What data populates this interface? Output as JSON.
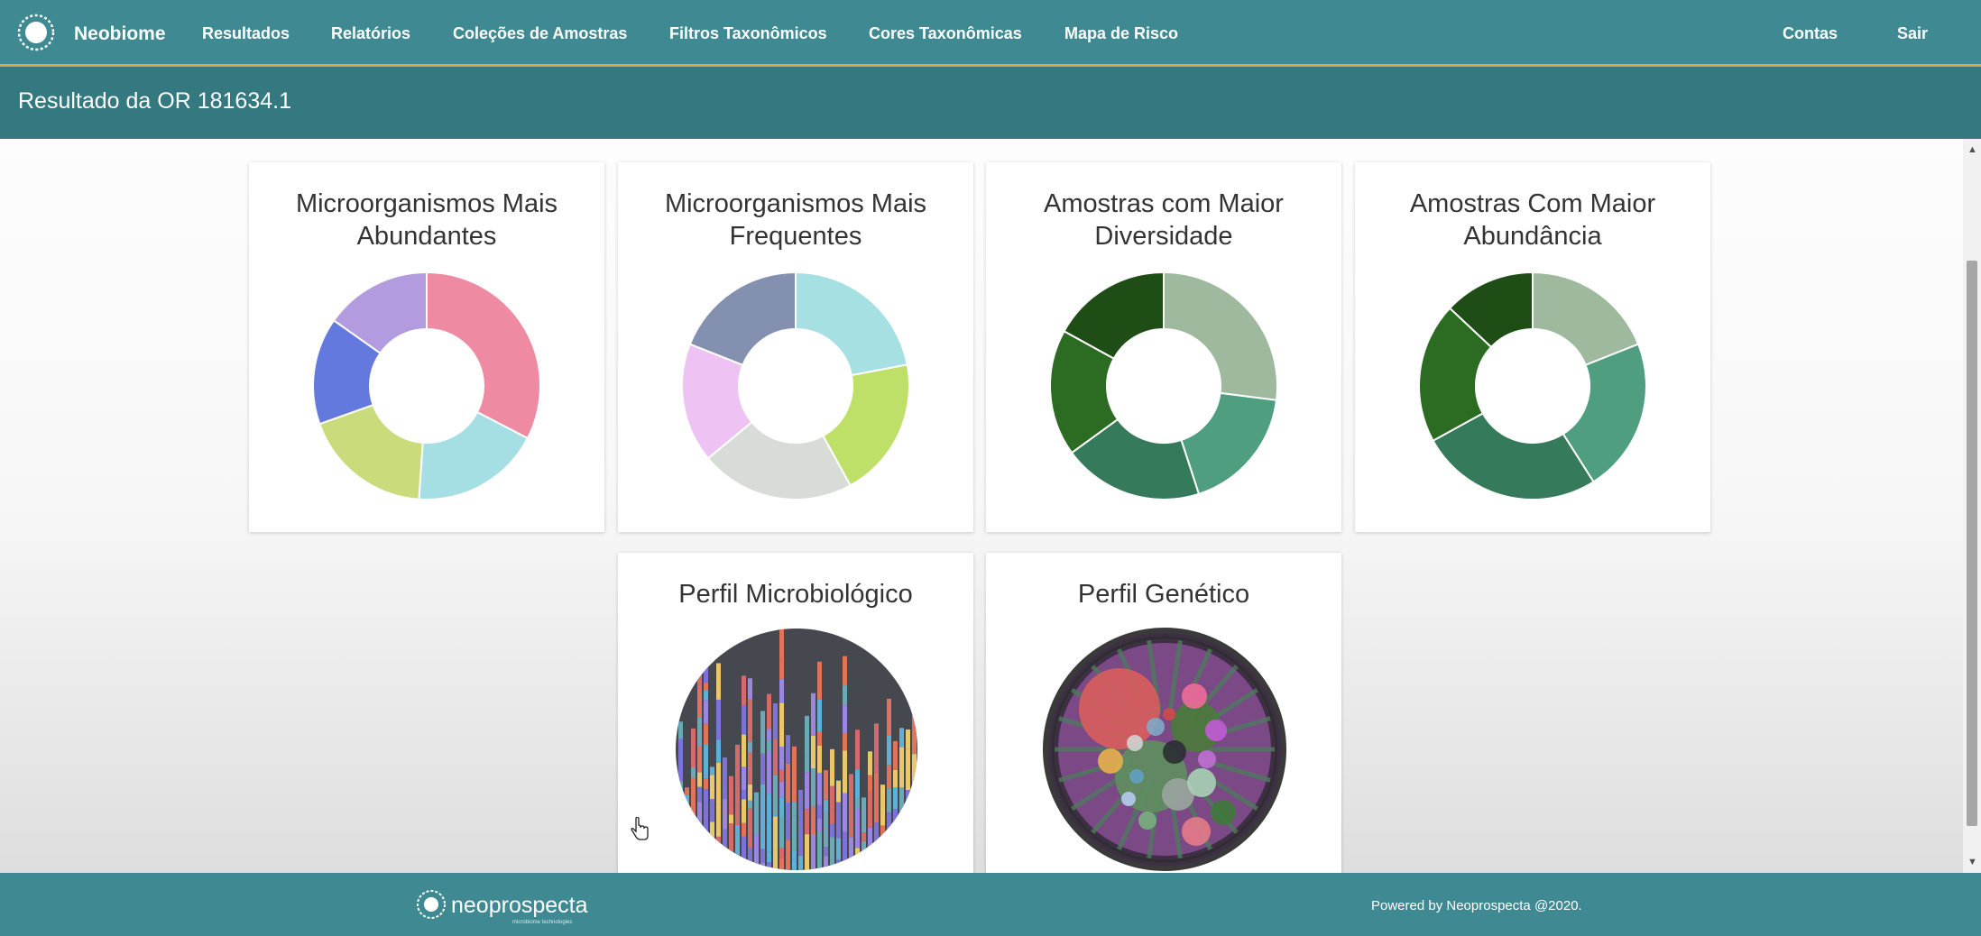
{
  "nav": {
    "brand": "Neobiome",
    "items": [
      "Resultados",
      "Relatórios",
      "Coleções de Amostras",
      "Filtros Taxonômicos",
      "Cores Taxonômicas",
      "Mapa de Risco"
    ],
    "right_items": [
      "Contas",
      "Sair"
    ]
  },
  "page": {
    "title": "Resultado da OR 181634.1"
  },
  "cards": [
    {
      "title": "Microorganismos Mais Abundantes",
      "line1": "Microorganismos Mais",
      "line2": "Abundantes"
    },
    {
      "title": "Microorganismos Mais Frequentes",
      "line1": "Microorganismos Mais",
      "line2": "Frequentes"
    },
    {
      "title": "Amostras com Maior Diversidade",
      "line1": "Amostras com Maior",
      "line2": "Diversidade"
    },
    {
      "title": "Amostras Com Maior Abundância",
      "line1": "Amostras Com Maior",
      "line2": "Abundância"
    },
    {
      "title": "Perfil Microbiológico",
      "line1": "Perfil Microbiológico"
    },
    {
      "title": "Perfil Genético",
      "line1": "Perfil Genético"
    }
  ],
  "chart_data": [
    {
      "type": "pie",
      "values": [
        30,
        17,
        17,
        14,
        14
      ],
      "colors": [
        "#ef8aa3",
        "#a5dfe3",
        "#c9db7a",
        "#6479dd",
        "#b39be0"
      ]
    },
    {
      "type": "pie",
      "values": [
        22,
        20,
        22,
        17,
        19
      ],
      "colors": [
        "#a7e0e3",
        "#bedf68",
        "#d7dcd6",
        "#eec3f4",
        "#8390b0"
      ]
    },
    {
      "type": "pie",
      "values": [
        27,
        18,
        20,
        18,
        17
      ],
      "colors": [
        "#9eb99d",
        "#4f9e80",
        "#357a5a",
        "#2c6c22",
        "#1e4d16"
      ]
    },
    {
      "type": "pie",
      "values": [
        19,
        22,
        26,
        20,
        13
      ],
      "colors": [
        "#9eb99d",
        "#4f9e80",
        "#357a5a",
        "#2c6c22",
        "#1e4d16"
      ]
    }
  ],
  "footer": {
    "logo_text": "neoprospecta",
    "logo_subtext": "microbiome technologies",
    "powered_by": "Powered by Neoprospecta @2020."
  },
  "icons": [
    "neobiome-logo-icon",
    "neoprospecta-logo-icon",
    "hand-cursor-icon"
  ]
}
